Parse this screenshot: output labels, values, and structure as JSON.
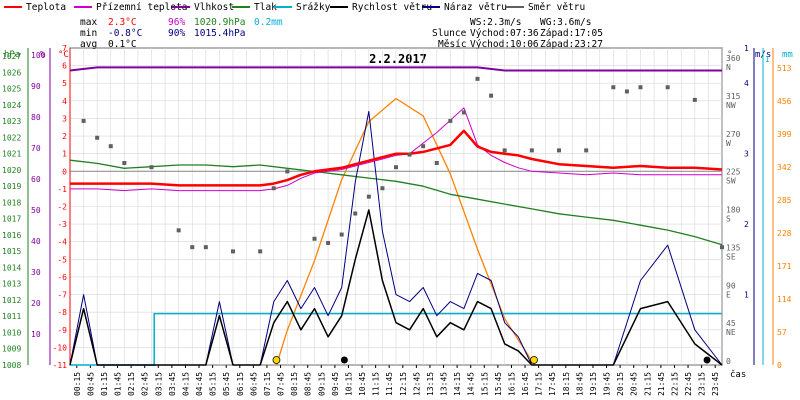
{
  "chart_data": {
    "type": "line",
    "title": "2.2.2017",
    "legend": [
      {
        "name": "Teplota",
        "color": "#ff0000"
      },
      {
        "name": "Přízemní teplota",
        "color": "#cc00cc"
      },
      {
        "name": "Vlhkost",
        "color": "#8000a0"
      },
      {
        "name": "Tlak",
        "color": "#208020"
      },
      {
        "name": "Srážky",
        "color": "#00b0d0"
      },
      {
        "name": "Rychlost větru",
        "color": "#000000"
      },
      {
        "name": "Náraz větru",
        "color": "#000080"
      },
      {
        "name": "Směr větru",
        "color": "#606060"
      }
    ],
    "stats": {
      "max": {
        "label": "max",
        "temp": "2.3°C",
        "hum": "96%",
        "press": "1020.9hPa",
        "rain": "0.2mm"
      },
      "min": {
        "label": "min",
        "temp": "-0.8°C",
        "hum": "90%",
        "press": "1015.4hPa"
      },
      "avg": {
        "label": "avg",
        "temp": "0.1°C"
      }
    },
    "wind_info": {
      "ws": "WS:2.3m/s",
      "wg": "WG:3.6m/s"
    },
    "sun_info": {
      "label": "Slunce",
      "rise": "Východ:07:36",
      "set": "Západ:17:05"
    },
    "moon_info": {
      "label": "Měsíc",
      "rise": "Východ:10:06",
      "set": "Západ:23:27"
    },
    "axes": {
      "hpa_label": "hPa",
      "pct_label": "%",
      "temp_label": "°C",
      "dir_label": "°",
      "ms_label": "m/s",
      "mm_label": "mm",
      "x_label": "čas",
      "hpa_ticks": [
        "1027",
        "1026",
        "1025",
        "1024",
        "1023",
        "1022",
        "1021",
        "1020",
        "1019",
        "1018",
        "1017",
        "1016",
        "1015",
        "1014",
        "1013",
        "1012",
        "1011",
        "1010",
        "1009",
        "1008"
      ],
      "pct_ticks": [
        "100",
        "90",
        "80",
        "70",
        "60",
        "50",
        "40",
        "30",
        "20",
        "10"
      ],
      "temp_ticks": [
        "7",
        "6",
        "5",
        "4",
        "3",
        "2",
        "1",
        "0",
        "-1",
        "-2",
        "-3",
        "-4",
        "-5",
        "-6",
        "-7",
        "-8",
        "-9",
        "-10",
        "-11"
      ],
      "dir_ticks": [
        {
          "deg": "360",
          "card": "N"
        },
        {
          "deg": "315",
          "card": "NW"
        },
        {
          "deg": "270",
          "card": "W"
        },
        {
          "deg": "225",
          "card": "SW"
        },
        {
          "deg": "180",
          "card": "S"
        },
        {
          "deg": "135",
          "card": "SE"
        },
        {
          "deg": "90",
          "card": "E"
        },
        {
          "deg": "45",
          "card": "NE"
        },
        {
          "deg": "0",
          "card": ""
        }
      ],
      "ms_ticks": [
        "1",
        "4",
        "3",
        "2",
        "1"
      ],
      "mm_ticks": [
        "1"
      ],
      "rad_ticks": [
        "513",
        "456",
        "399",
        "342",
        "285",
        "228",
        "171",
        "114",
        "57",
        "0"
      ],
      "x_ticks": [
        "00:15",
        "00:45",
        "01:15",
        "01:45",
        "02:15",
        "02:45",
        "03:15",
        "03:45",
        "04:15",
        "04:45",
        "05:15",
        "05:45",
        "06:15",
        "06:45",
        "07:15",
        "07:45",
        "08:15",
        "08:45",
        "09:15",
        "09:45",
        "10:15",
        "10:45",
        "11:15",
        "11:45",
        "12:15",
        "12:45",
        "13:15",
        "13:45",
        "14:15",
        "14:45",
        "15:15",
        "15:45",
        "16:15",
        "16:45",
        "17:15",
        "17:45",
        "18:15",
        "18:45",
        "19:15",
        "19:45",
        "20:15",
        "20:45",
        "21:15",
        "21:45",
        "22:15",
        "22:45",
        "23:15",
        "23:45"
      ]
    },
    "series": [
      {
        "name": "Teplota",
        "unit": "°C",
        "x": [
          0,
          1,
          2,
          3,
          4,
          5,
          6,
          7,
          7.5,
          8,
          8.5,
          9,
          9.5,
          10,
          10.5,
          11,
          11.5,
          12,
          12.5,
          13,
          13.5,
          14,
          14.5,
          15,
          15.5,
          16,
          16.5,
          17,
          18,
          19,
          20,
          21,
          22,
          23,
          24
        ],
        "values": [
          -0.7,
          -0.7,
          -0.7,
          -0.7,
          -0.8,
          -0.8,
          -0.8,
          -0.8,
          -0.7,
          -0.5,
          -0.2,
          0.0,
          0.1,
          0.2,
          0.4,
          0.6,
          0.8,
          1.0,
          1.0,
          1.1,
          1.3,
          1.5,
          2.3,
          1.4,
          1.1,
          1.0,
          0.9,
          0.7,
          0.4,
          0.3,
          0.2,
          0.3,
          0.2,
          0.2,
          0.1
        ]
      },
      {
        "name": "Přízemní teplota",
        "unit": "°C",
        "x": [
          0,
          1,
          2,
          3,
          4,
          5,
          6,
          7,
          7.5,
          8,
          8.5,
          9,
          9.5,
          10,
          10.5,
          11,
          11.5,
          12,
          12.5,
          13,
          13.5,
          14,
          14.5,
          15,
          15.5,
          16,
          16.5,
          17,
          18,
          19,
          20,
          21,
          22,
          23,
          24
        ],
        "values": [
          -1.0,
          -1.0,
          -1.1,
          -1.0,
          -1.1,
          -1.1,
          -1.1,
          -1.1,
          -1.0,
          -0.8,
          -0.4,
          -0.1,
          0.0,
          0.1,
          0.3,
          0.5,
          0.7,
          0.9,
          1.0,
          1.6,
          2.2,
          2.9,
          3.6,
          1.5,
          0.9,
          0.5,
          0.2,
          0.0,
          -0.1,
          -0.2,
          -0.1,
          -0.2,
          -0.2,
          -0.2,
          -0.2
        ]
      },
      {
        "name": "Vlhkost",
        "unit": "%",
        "x": [
          0,
          1,
          2,
          3,
          4,
          5,
          6,
          7,
          8,
          9,
          10,
          11,
          12,
          13,
          14,
          15,
          16,
          17,
          18,
          19,
          20,
          21,
          22,
          23,
          24
        ],
        "values": [
          95,
          96,
          96,
          96,
          96,
          96,
          96,
          96,
          96,
          96,
          96,
          96,
          96,
          96,
          96,
          96,
          95,
          95,
          95,
          95,
          95,
          95,
          95,
          95,
          95
        ]
      },
      {
        "name": "Tlak",
        "unit": "hPa",
        "x": [
          0,
          1,
          2,
          3,
          4,
          5,
          6,
          7,
          8,
          9,
          10,
          11,
          12,
          13,
          14,
          15,
          16,
          17,
          18,
          19,
          20,
          21,
          22,
          23,
          24
        ],
        "values": [
          1020.6,
          1020.4,
          1020.1,
          1020.2,
          1020.3,
          1020.3,
          1020.2,
          1020.3,
          1020.1,
          1019.9,
          1019.7,
          1019.5,
          1019.3,
          1019.0,
          1018.5,
          1018.2,
          1017.9,
          1017.6,
          1017.3,
          1017.1,
          1016.9,
          1016.6,
          1016.3,
          1015.9,
          1015.4
        ]
      },
      {
        "name": "Srážky",
        "unit": "mm",
        "x": [
          0,
          3,
          3.1,
          24
        ],
        "values": [
          0,
          0,
          0.2,
          0.2
        ]
      },
      {
        "name": "Rychlost větru",
        "unit": "m/s",
        "x": [
          0,
          0.5,
          1,
          2,
          3,
          4,
          5,
          5.5,
          6,
          7,
          7.5,
          8,
          8.5,
          9,
          9.5,
          10,
          10.5,
          11,
          11.5,
          12,
          12.5,
          13,
          13.5,
          14,
          14.5,
          15,
          15.5,
          16,
          16.5,
          17,
          18,
          19,
          20,
          21,
          22,
          23,
          24
        ],
        "values": [
          0,
          0.8,
          0,
          0,
          0,
          0,
          0,
          0.7,
          0,
          0,
          0.6,
          0.9,
          0.5,
          0.8,
          0.4,
          0.7,
          1.5,
          2.2,
          1.2,
          0.6,
          0.5,
          0.8,
          0.4,
          0.6,
          0.5,
          0.9,
          0.8,
          0.3,
          0.2,
          0,
          0,
          0,
          0,
          0.8,
          0.9,
          0.3,
          0
        ]
      },
      {
        "name": "Náraz větru",
        "unit": "m/s",
        "x": [
          0,
          0.5,
          1,
          2,
          3,
          4,
          5,
          5.5,
          6,
          7,
          7.5,
          8,
          8.5,
          9,
          9.5,
          10,
          10.5,
          11,
          11.5,
          12,
          12.5,
          13,
          13.5,
          14,
          14.5,
          15,
          15.5,
          16,
          16.5,
          17,
          18,
          19,
          20,
          21,
          22,
          23,
          24
        ],
        "values": [
          0,
          1.0,
          0,
          0,
          0,
          0,
          0,
          0.9,
          0,
          0,
          0.9,
          1.2,
          0.8,
          1.1,
          0.7,
          1.1,
          2.6,
          3.6,
          1.9,
          1.0,
          0.9,
          1.1,
          0.7,
          0.9,
          0.8,
          1.3,
          1.2,
          0.6,
          0.4,
          0,
          0,
          0,
          0,
          1.2,
          1.7,
          0.5,
          0
        ]
      },
      {
        "name": "Směr větru",
        "unit": "°",
        "x": [
          0.5,
          1,
          1.5,
          2,
          3,
          4,
          4.5,
          5,
          6,
          7,
          7.5,
          8,
          9,
          9.5,
          10,
          10.5,
          11,
          11.5,
          12,
          12.5,
          13,
          13.5,
          14,
          14.5,
          15,
          15.5,
          16,
          17,
          18,
          19,
          20,
          20.5,
          21,
          22,
          23,
          24
        ],
        "values": [
          290,
          270,
          260,
          240,
          235,
          160,
          140,
          140,
          135,
          135,
          210,
          230,
          150,
          145,
          155,
          180,
          200,
          210,
          235,
          250,
          260,
          240,
          290,
          300,
          340,
          320,
          255,
          255,
          255,
          255,
          330,
          325,
          330,
          330,
          315,
          140
        ]
      },
      {
        "name": "Sluneční záření",
        "unit": "W/m²",
        "x": [
          7.6,
          8,
          9,
          10,
          11,
          12,
          13,
          14,
          15,
          16,
          17.1
        ],
        "values": [
          0,
          60,
          180,
          320,
          420,
          460,
          430,
          330,
          200,
          80,
          0
        ]
      }
    ],
    "xlim": [
      0,
      24
    ],
    "temp_range": [
      -11,
      7
    ],
    "press_range": [
      1008,
      1027.5
    ],
    "dir_range": [
      0,
      360
    ],
    "ms_range": [
      0,
      4.5
    ],
    "rad_range": [
      0,
      530
    ],
    "sun_markers": [
      {
        "type": "sunrise",
        "x": 7.6
      },
      {
        "type": "sunset",
        "x": 17.08
      }
    ],
    "moon_markers": [
      {
        "type": "moonrise",
        "x": 10.1
      },
      {
        "type": "moonset",
        "x": 23.45
      }
    ]
  }
}
